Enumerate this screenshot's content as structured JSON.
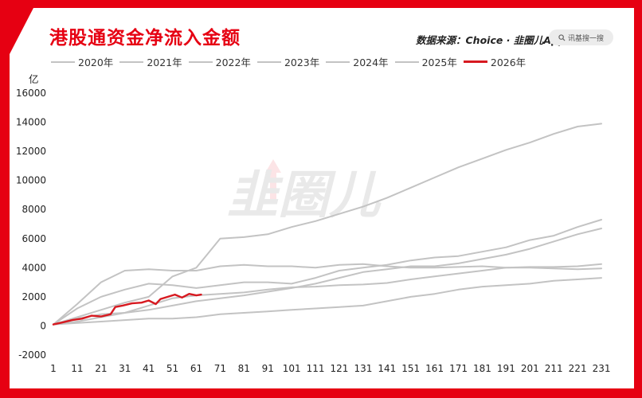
{
  "title": "港股通资金净流入金额",
  "source": "数据来源：Choice · 韭圈儿App",
  "search": {
    "label": "讯基搜一搜",
    "icon": "search-icon"
  },
  "watermark": "韭圈儿",
  "colors": {
    "accent": "#e60012",
    "series_gray": "#c3c3c3",
    "series_2026": "#d71920"
  },
  "chart_data": {
    "type": "line",
    "title": "港股通资金净流入金额",
    "unit_label": "亿",
    "xlabel": "",
    "ylabel": "",
    "xlim": [
      1,
      236
    ],
    "ylim": [
      -2000,
      16000
    ],
    "yticks": [
      -2000,
      0,
      2000,
      4000,
      6000,
      8000,
      10000,
      12000,
      14000,
      16000
    ],
    "xticks": [
      1,
      11,
      21,
      31,
      41,
      51,
      61,
      71,
      81,
      91,
      101,
      111,
      121,
      131,
      141,
      151,
      161,
      171,
      181,
      191,
      201,
      211,
      221,
      231
    ],
    "grid": false,
    "legend_position": "top",
    "series": [
      {
        "name": "2020年",
        "color": "#c3c3c3",
        "points": [
          [
            1,
            100
          ],
          [
            11,
            300
          ],
          [
            21,
            600
          ],
          [
            31,
            900
          ],
          [
            41,
            1400
          ],
          [
            51,
            1900
          ],
          [
            61,
            2100
          ],
          [
            71,
            2200
          ],
          [
            81,
            2300
          ],
          [
            91,
            2500
          ],
          [
            101,
            2650
          ],
          [
            111,
            2700
          ],
          [
            121,
            2800
          ],
          [
            131,
            2850
          ],
          [
            141,
            2950
          ],
          [
            151,
            3200
          ],
          [
            161,
            3400
          ],
          [
            171,
            3600
          ],
          [
            181,
            3800
          ],
          [
            191,
            4000
          ],
          [
            201,
            4050
          ],
          [
            211,
            4050
          ],
          [
            221,
            4100
          ],
          [
            231,
            4250
          ]
        ]
      },
      {
        "name": "2021年",
        "color": "#c3c3c3",
        "points": [
          [
            1,
            100
          ],
          [
            11,
            1500
          ],
          [
            21,
            3000
          ],
          [
            31,
            3800
          ],
          [
            41,
            3900
          ],
          [
            51,
            3800
          ],
          [
            61,
            3800
          ],
          [
            71,
            4100
          ],
          [
            81,
            4200
          ],
          [
            91,
            4100
          ],
          [
            101,
            4100
          ],
          [
            111,
            4000
          ],
          [
            121,
            4200
          ],
          [
            131,
            4250
          ],
          [
            141,
            4100
          ],
          [
            151,
            4000
          ],
          [
            161,
            4000
          ],
          [
            171,
            4050
          ],
          [
            181,
            4100
          ],
          [
            191,
            4000
          ],
          [
            201,
            4000
          ],
          [
            211,
            3950
          ],
          [
            221,
            3900
          ],
          [
            231,
            3950
          ]
        ]
      },
      {
        "name": "2022年",
        "color": "#c3c3c3",
        "points": [
          [
            1,
            100
          ],
          [
            11,
            500
          ],
          [
            21,
            800
          ],
          [
            31,
            900
          ],
          [
            41,
            1100
          ],
          [
            51,
            1400
          ],
          [
            61,
            1700
          ],
          [
            71,
            1900
          ],
          [
            81,
            2100
          ],
          [
            91,
            2350
          ],
          [
            101,
            2600
          ],
          [
            111,
            2900
          ],
          [
            121,
            3300
          ],
          [
            131,
            3700
          ],
          [
            141,
            3900
          ],
          [
            151,
            4100
          ],
          [
            161,
            4100
          ],
          [
            171,
            4300
          ],
          [
            181,
            4600
          ],
          [
            191,
            4900
          ],
          [
            201,
            5300
          ],
          [
            211,
            5800
          ],
          [
            221,
            6300
          ],
          [
            231,
            6700
          ]
        ]
      },
      {
        "name": "2023年",
        "color": "#c3c3c3",
        "points": [
          [
            1,
            100
          ],
          [
            11,
            1200
          ],
          [
            21,
            2000
          ],
          [
            31,
            2500
          ],
          [
            41,
            2900
          ],
          [
            51,
            2800
          ],
          [
            61,
            2600
          ],
          [
            71,
            2800
          ],
          [
            81,
            3000
          ],
          [
            91,
            3000
          ],
          [
            101,
            2900
          ],
          [
            111,
            3300
          ],
          [
            121,
            3800
          ],
          [
            131,
            4000
          ],
          [
            141,
            4200
          ],
          [
            151,
            4500
          ],
          [
            161,
            4700
          ],
          [
            171,
            4800
          ],
          [
            181,
            5100
          ],
          [
            191,
            5400
          ],
          [
            201,
            5900
          ],
          [
            211,
            6200
          ],
          [
            221,
            6800
          ],
          [
            231,
            7300
          ]
        ]
      },
      {
        "name": "2024年",
        "color": "#c3c3c3",
        "points": [
          [
            1,
            100
          ],
          [
            11,
            200
          ],
          [
            21,
            300
          ],
          [
            31,
            400
          ],
          [
            41,
            500
          ],
          [
            51,
            500
          ],
          [
            61,
            600
          ],
          [
            71,
            800
          ],
          [
            81,
            900
          ],
          [
            91,
            1000
          ],
          [
            101,
            1100
          ],
          [
            111,
            1200
          ],
          [
            121,
            1300
          ],
          [
            131,
            1400
          ],
          [
            141,
            1700
          ],
          [
            151,
            2000
          ],
          [
            161,
            2200
          ],
          [
            171,
            2500
          ],
          [
            181,
            2700
          ],
          [
            191,
            2800
          ],
          [
            201,
            2900
          ],
          [
            211,
            3100
          ],
          [
            221,
            3200
          ],
          [
            231,
            3300
          ]
        ]
      },
      {
        "name": "2025年",
        "color": "#c3c3c3",
        "points": [
          [
            1,
            100
          ],
          [
            11,
            600
          ],
          [
            21,
            1100
          ],
          [
            31,
            1600
          ],
          [
            41,
            2000
          ],
          [
            51,
            3400
          ],
          [
            61,
            4000
          ],
          [
            71,
            6000
          ],
          [
            81,
            6100
          ],
          [
            91,
            6300
          ],
          [
            101,
            6800
          ],
          [
            111,
            7200
          ],
          [
            121,
            7700
          ],
          [
            131,
            8200
          ],
          [
            141,
            8800
          ],
          [
            151,
            9500
          ],
          [
            161,
            10200
          ],
          [
            171,
            10900
          ],
          [
            181,
            11500
          ],
          [
            191,
            12100
          ],
          [
            201,
            12600
          ],
          [
            211,
            13200
          ],
          [
            221,
            13700
          ],
          [
            231,
            13900
          ]
        ]
      },
      {
        "name": "2026年",
        "color": "#d71920",
        "points": [
          [
            1,
            100
          ],
          [
            5,
            250
          ],
          [
            9,
            400
          ],
          [
            13,
            500
          ],
          [
            17,
            700
          ],
          [
            21,
            650
          ],
          [
            25,
            800
          ],
          [
            27,
            1300
          ],
          [
            30,
            1400
          ],
          [
            34,
            1550
          ],
          [
            38,
            1600
          ],
          [
            41,
            1750
          ],
          [
            44,
            1500
          ],
          [
            46,
            1850
          ],
          [
            49,
            2000
          ],
          [
            52,
            2150
          ],
          [
            55,
            1950
          ],
          [
            58,
            2200
          ],
          [
            61,
            2100
          ],
          [
            63,
            2150
          ]
        ]
      }
    ]
  }
}
